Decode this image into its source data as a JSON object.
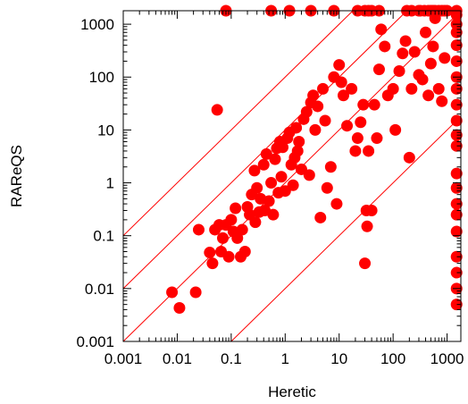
{
  "chart_data": {
    "type": "scatter",
    "xlabel": "Heretic",
    "ylabel": "RAReQS",
    "xscale": "log",
    "yscale": "log",
    "xlim": [
      0.001,
      1800
    ],
    "ylim": [
      0.001,
      1800
    ],
    "grid": false,
    "legend": "none",
    "x_ticks": [
      0.001,
      0.01,
      0.1,
      1,
      10,
      100,
      1000
    ],
    "x_tick_labels": [
      "0.001",
      "0.01",
      "0.1",
      "1",
      "10",
      "100",
      "1000"
    ],
    "y_ticks": [
      0.001,
      0.01,
      0.1,
      1,
      10,
      100,
      1000
    ],
    "y_tick_labels": [
      "0.001",
      "0.01",
      "0.1",
      "1",
      "10",
      "100",
      "1000"
    ],
    "reference_lines": [
      {
        "ratio": 100
      },
      {
        "ratio": 10
      },
      {
        "ratio": 1
      },
      {
        "ratio": 0.01
      }
    ],
    "series": [
      {
        "color": "#ff0000",
        "points": [
          [
            0.008,
            0.0085
          ],
          [
            0.011,
            0.0043
          ],
          [
            0.022,
            0.0085
          ],
          [
            0.025,
            0.13
          ],
          [
            0.04,
            0.048
          ],
          [
            0.045,
            0.03
          ],
          [
            0.05,
            0.13
          ],
          [
            0.055,
            24
          ],
          [
            0.06,
            0.16
          ],
          [
            0.065,
            0.05
          ],
          [
            0.07,
            0.09
          ],
          [
            0.08,
            0.16
          ],
          [
            0.09,
            0.04
          ],
          [
            0.1,
            0.2
          ],
          [
            0.11,
            0.12
          ],
          [
            0.12,
            0.33
          ],
          [
            0.13,
            0.09
          ],
          [
            0.15,
            0.04
          ],
          [
            0.16,
            0.13
          ],
          [
            0.18,
            0.05
          ],
          [
            0.2,
            0.35
          ],
          [
            0.22,
            0.25
          ],
          [
            0.24,
            0.6
          ],
          [
            0.27,
            1.7
          ],
          [
            0.28,
            0.18
          ],
          [
            0.3,
            0.8
          ],
          [
            0.33,
            0.28
          ],
          [
            0.35,
            0.5
          ],
          [
            0.4,
            2.2
          ],
          [
            0.42,
            0.3
          ],
          [
            0.45,
            3.5
          ],
          [
            0.5,
            0.45
          ],
          [
            0.55,
            1.0
          ],
          [
            0.6,
            0.25
          ],
          [
            0.65,
            2.8
          ],
          [
            0.7,
            4.5
          ],
          [
            0.75,
            0.65
          ],
          [
            0.8,
            6
          ],
          [
            0.85,
            1.3
          ],
          [
            0.9,
            4.7
          ],
          [
            1.0,
            0.7
          ],
          [
            1.1,
            7
          ],
          [
            1.2,
            9
          ],
          [
            1.3,
            2.2
          ],
          [
            1.4,
            0.9
          ],
          [
            1.5,
            3
          ],
          [
            1.6,
            11
          ],
          [
            1.7,
            4
          ],
          [
            1.8,
            6
          ],
          [
            2.0,
            1.8
          ],
          [
            2.2,
            16
          ],
          [
            2.5,
            22
          ],
          [
            2.8,
            1.4
          ],
          [
            3.0,
            33
          ],
          [
            3.3,
            45
          ],
          [
            3.6,
            10
          ],
          [
            4.0,
            28
          ],
          [
            4.5,
            0.22
          ],
          [
            5.0,
            60
          ],
          [
            5.5,
            15
          ],
          [
            6.0,
            0.8
          ],
          [
            7.0,
            2.0
          ],
          [
            8.0,
            100
          ],
          [
            9.0,
            0.4
          ],
          [
            10.0,
            170
          ],
          [
            11.0,
            80
          ],
          [
            12.0,
            45
          ],
          [
            14.0,
            12
          ],
          [
            17.0,
            60
          ],
          [
            20.0,
            4
          ],
          [
            22.0,
            7
          ],
          [
            25.0,
            14
          ],
          [
            28.0,
            30
          ],
          [
            30.0,
            0.03
          ],
          [
            32.0,
            0.3
          ],
          [
            33.0,
            0.15
          ],
          [
            35.0,
            4
          ],
          [
            40.0,
            0.3
          ],
          [
            45.0,
            30
          ],
          [
            50.0,
            7
          ],
          [
            55.0,
            140
          ],
          [
            60.0,
            800
          ],
          [
            70.0,
            380
          ],
          [
            80.0,
            45
          ],
          [
            100.0,
            60
          ],
          [
            110.0,
            10
          ],
          [
            130.0,
            130
          ],
          [
            150.0,
            280
          ],
          [
            170.0,
            480
          ],
          [
            200.0,
            3
          ],
          [
            220.0,
            60
          ],
          [
            250.0,
            300
          ],
          [
            300.0,
            110
          ],
          [
            350.0,
            90
          ],
          [
            400.0,
            700
          ],
          [
            450.0,
            45
          ],
          [
            500.0,
            180
          ],
          [
            550.0,
            380
          ],
          [
            600.0,
            1300
          ],
          [
            700.0,
            60
          ],
          [
            800.0,
            35
          ],
          [
            900.0,
            230
          ],
          [
            0.08,
            1800
          ],
          [
            0.55,
            1800
          ],
          [
            1.2,
            1800
          ],
          [
            3.0,
            1800
          ],
          [
            8.0,
            1800
          ],
          [
            22.0,
            1800
          ],
          [
            30.0,
            1800
          ],
          [
            35.0,
            1800
          ],
          [
            40.0,
            1800
          ],
          [
            55.0,
            1800
          ],
          [
            180.0,
            1800
          ],
          [
            220.0,
            1800
          ],
          [
            300.0,
            1800
          ],
          [
            320.0,
            1800
          ],
          [
            380.0,
            1800
          ],
          [
            450.0,
            1800
          ],
          [
            500.0,
            1800
          ],
          [
            550.0,
            1800
          ],
          [
            600.0,
            1800
          ],
          [
            700.0,
            1800
          ],
          [
            800.0,
            1800
          ],
          [
            900.0,
            1800
          ],
          [
            1000.0,
            1800
          ],
          [
            1500.0,
            1800
          ],
          [
            1500.0,
            1500
          ],
          [
            1500.0,
            1000
          ],
          [
            1500.0,
            700
          ],
          [
            1500.0,
            400
          ],
          [
            1500.0,
            200
          ],
          [
            1500.0,
            100
          ],
          [
            1500.0,
            60
          ],
          [
            1500.0,
            30
          ],
          [
            1500.0,
            15
          ],
          [
            1500.0,
            8
          ],
          [
            1500.0,
            5
          ],
          [
            1500.0,
            1.5
          ],
          [
            1500.0,
            0.8
          ],
          [
            1500.0,
            0.4
          ],
          [
            1500.0,
            0.25
          ],
          [
            1500.0,
            0.12
          ],
          [
            1500.0,
            0.04
          ],
          [
            1500.0,
            0.02
          ],
          [
            1500.0,
            0.01
          ],
          [
            1500.0,
            0.005
          ]
        ]
      }
    ]
  }
}
